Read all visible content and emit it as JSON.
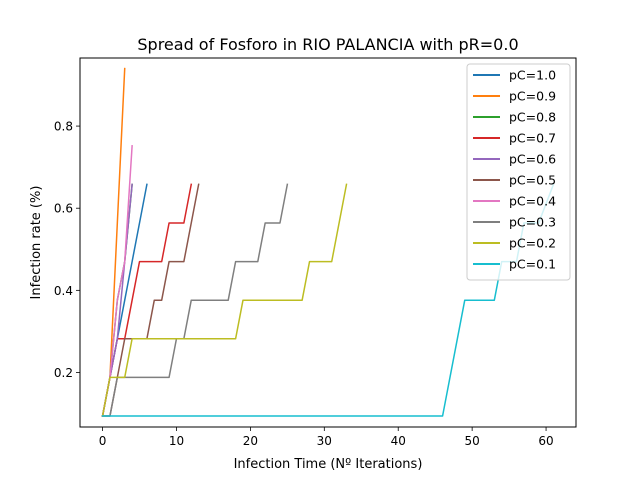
{
  "chart_data": {
    "type": "line",
    "title": "Spread of Fosforo in RIO PALANCIA with pR=0.0",
    "xlabel": "Infection Time (Nº Iterations)",
    "ylabel": "Infection rate (%)",
    "xlim": [
      -3.05,
      64.05
    ],
    "ylim": [
      0.0672,
      0.9658
    ],
    "xticks": [
      0,
      10,
      20,
      30,
      40,
      50,
      60
    ],
    "yticks": [
      0.2,
      0.4,
      0.6,
      0.8
    ],
    "xtick_labels": [
      "0",
      "10",
      "20",
      "30",
      "40",
      "50",
      "60"
    ],
    "ytick_labels": [
      "0.2",
      "0.4",
      "0.6",
      "0.8"
    ],
    "legend_position": "top-right",
    "series": [
      {
        "name": "pC=1.0",
        "color": "#1f77b4",
        "x": [
          0,
          1,
          2,
          3,
          4,
          5,
          6
        ],
        "y": [
          0.094,
          0.188,
          0.282,
          0.376,
          0.47,
          0.564,
          0.658
        ]
      },
      {
        "name": "pC=0.9",
        "color": "#ff7f0e",
        "x": [
          0,
          1,
          2,
          3
        ],
        "y": [
          0.094,
          0.188,
          0.564,
          0.94
        ]
      },
      {
        "name": "pC=0.8",
        "color": "#2ca02c",
        "x": [
          0,
          1,
          2,
          3,
          4
        ],
        "y": [
          0.094,
          0.188,
          0.376,
          0.47,
          0.658
        ]
      },
      {
        "name": "pC=0.7",
        "color": "#d62728",
        "x": [
          0,
          1,
          2,
          3,
          4,
          5,
          6,
          7,
          8,
          9,
          10,
          11,
          12
        ],
        "y": [
          0.094,
          0.188,
          0.282,
          0.282,
          0.376,
          0.47,
          0.47,
          0.47,
          0.47,
          0.564,
          0.564,
          0.564,
          0.658
        ]
      },
      {
        "name": "pC=0.6",
        "color": "#9467bd",
        "x": [
          0,
          1,
          2,
          3,
          4
        ],
        "y": [
          0.094,
          0.188,
          0.282,
          0.47,
          0.658
        ]
      },
      {
        "name": "pC=0.5",
        "color": "#8c564b",
        "x": [
          0,
          1,
          2,
          3,
          4,
          5,
          6,
          7,
          8,
          9,
          10,
          11,
          12,
          13
        ],
        "y": [
          0.094,
          0.094,
          0.188,
          0.282,
          0.282,
          0.282,
          0.282,
          0.376,
          0.376,
          0.47,
          0.47,
          0.47,
          0.564,
          0.658
        ]
      },
      {
        "name": "pC=0.4",
        "color": "#e377c2",
        "x": [
          0,
          1,
          2,
          3,
          4
        ],
        "y": [
          0.094,
          0.188,
          0.376,
          0.47,
          0.752
        ]
      },
      {
        "name": "pC=0.3",
        "color": "#7f7f7f",
        "x": [
          0,
          1,
          2,
          9,
          10,
          11,
          12,
          16,
          17,
          18,
          21,
          22,
          24,
          25
        ],
        "y": [
          0.094,
          0.094,
          0.188,
          0.188,
          0.282,
          0.282,
          0.376,
          0.376,
          0.376,
          0.47,
          0.47,
          0.564,
          0.564,
          0.658
        ]
      },
      {
        "name": "pC=0.2",
        "color": "#bcbd22",
        "x": [
          0,
          1,
          3,
          4,
          18,
          19,
          27,
          28,
          31,
          33
        ],
        "y": [
          0.094,
          0.188,
          0.188,
          0.282,
          0.282,
          0.376,
          0.376,
          0.47,
          0.47,
          0.658
        ]
      },
      {
        "name": "pC=0.1",
        "color": "#17becf",
        "x": [
          0,
          46,
          49,
          53,
          54,
          56,
          57,
          59,
          61
        ],
        "y": [
          0.094,
          0.094,
          0.376,
          0.376,
          0.47,
          0.47,
          0.564,
          0.564,
          0.658
        ]
      }
    ]
  }
}
